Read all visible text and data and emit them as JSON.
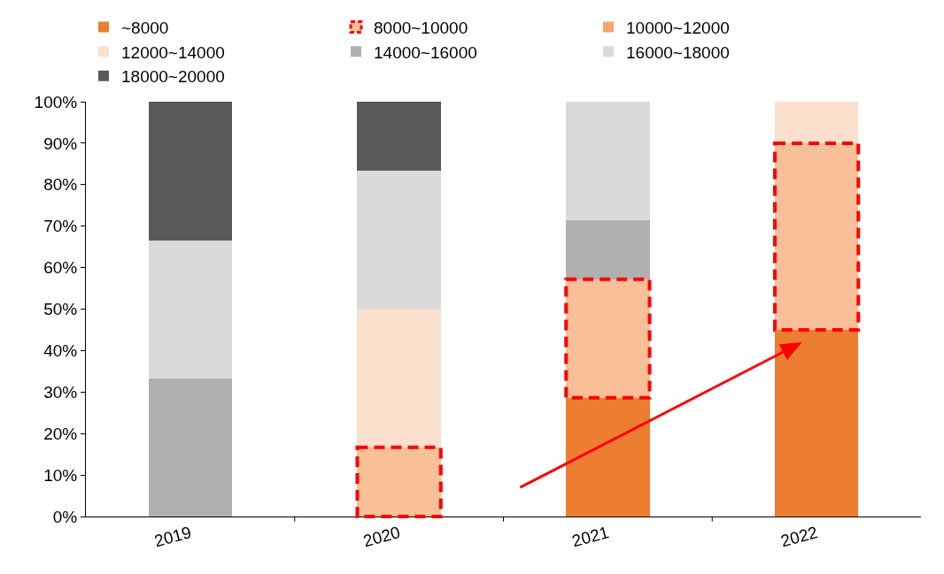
{
  "chart_data": {
    "type": "bar",
    "stacked": true,
    "categories": [
      "2019",
      "2020",
      "2021",
      "2022"
    ],
    "series": [
      {
        "name": "~8000",
        "color": "#ed7d31",
        "values": [
          0,
          0,
          28.6,
          45
        ]
      },
      {
        "name": "8000~10000",
        "color": "#f8bf98",
        "values": [
          0,
          16.7,
          28.6,
          45
        ],
        "line_style": "dashed"
      },
      {
        "name": "10000~12000",
        "color": "#f4a46e",
        "values": [
          0,
          0,
          0,
          0
        ]
      },
      {
        "name": "12000~14000",
        "color": "#fbe0cd",
        "values": [
          0,
          33.3,
          0,
          10
        ]
      },
      {
        "name": "14000~16000",
        "color": "#b0b0b0",
        "values": [
          33.3,
          0,
          14.3,
          0
        ]
      },
      {
        "name": "16000~18000",
        "color": "#dadada",
        "values": [
          33.3,
          33.3,
          28.6,
          0
        ]
      },
      {
        "name": "18000~20000",
        "color": "#595959",
        "values": [
          33.4,
          16.7,
          0,
          0
        ]
      }
    ],
    "ylim": [
      0,
      100
    ],
    "yticks": [
      {
        "value": 0,
        "label": "0%"
      },
      {
        "value": 10,
        "label": "10%"
      },
      {
        "value": 20,
        "label": "20%"
      },
      {
        "value": 30,
        "label": "30%"
      },
      {
        "value": 40,
        "label": "40%"
      },
      {
        "value": 50,
        "label": "50%"
      },
      {
        "value": 60,
        "label": "60%"
      },
      {
        "value": 70,
        "label": "70%"
      },
      {
        "value": 80,
        "label": "80%"
      },
      {
        "value": 90,
        "label": "90%"
      },
      {
        "value": 100,
        "label": "100%"
      }
    ],
    "grid": false,
    "legend": "top"
  }
}
